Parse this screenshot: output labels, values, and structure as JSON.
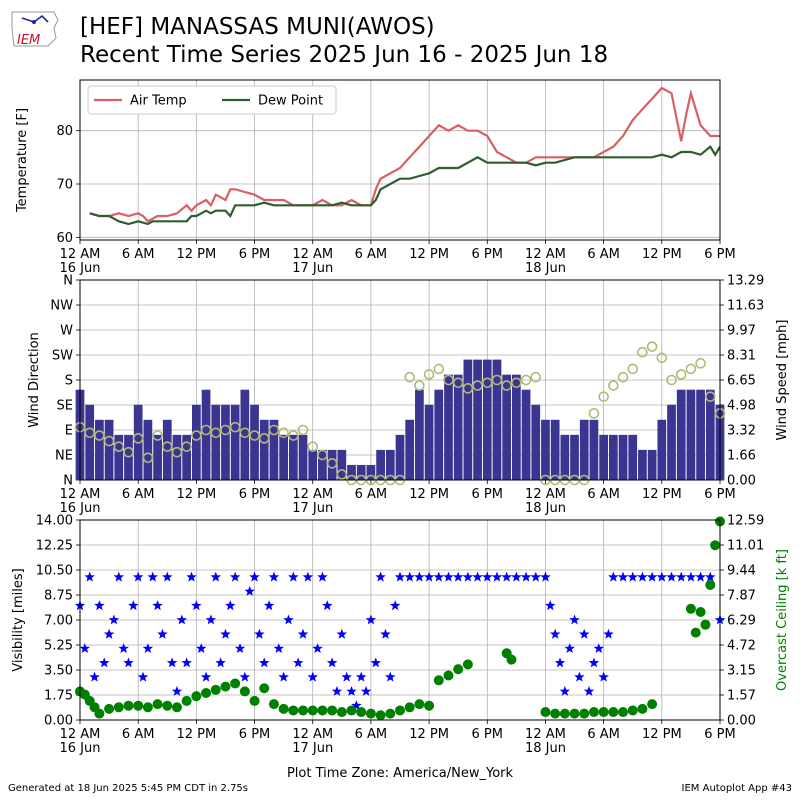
{
  "header": {
    "title": "[HEF] MANASSAS MUNI(AWOS)",
    "subtitle": "Recent Time Series 2025 Jun 16 - 2025 Jun 18",
    "logo_text": "IEM"
  },
  "footer": {
    "generated": "Generated at 18 Jun 2025 5:45 PM CDT in 2.75s",
    "app": "IEM Autoplot App #43",
    "timezone_label": "Plot Time Zone: America/New_York"
  },
  "colors": {
    "air_temp": "#d85f63",
    "dew_point": "#2e5d2f",
    "wind_speed": "#3a3591",
    "wind_dir": "#b3b978",
    "visibility": "#0000ff",
    "ceiling": "#008000"
  },
  "x_axis": {
    "min": 0,
    "max": 66,
    "ticks": [
      {
        "v": 0,
        "l1": "12 AM",
        "l2": "16 Jun"
      },
      {
        "v": 6,
        "l1": "6 AM",
        "l2": ""
      },
      {
        "v": 12,
        "l1": "12 PM",
        "l2": ""
      },
      {
        "v": 18,
        "l1": "6 PM",
        "l2": ""
      },
      {
        "v": 24,
        "l1": "12 AM",
        "l2": "17 Jun"
      },
      {
        "v": 30,
        "l1": "6 AM",
        "l2": ""
      },
      {
        "v": 36,
        "l1": "12 PM",
        "l2": ""
      },
      {
        "v": 42,
        "l1": "6 PM",
        "l2": ""
      },
      {
        "v": 48,
        "l1": "12 AM",
        "l2": "18 Jun"
      },
      {
        "v": 54,
        "l1": "6 AM",
        "l2": ""
      },
      {
        "v": 60,
        "l1": "12 PM",
        "l2": ""
      },
      {
        "v": 66,
        "l1": "6 PM",
        "l2": ""
      }
    ]
  },
  "chart_data": [
    {
      "type": "line",
      "ylabel": "Temperature [F]",
      "ylim": [
        59.5,
        89.5
      ],
      "yticks": [
        "60",
        "70",
        "80"
      ],
      "legend": "top-left",
      "grid": true,
      "series": [
        {
          "name": "Air Temp",
          "color": "#d85f63",
          "x": [
            1,
            2,
            3,
            4,
            5,
            6,
            6.5,
            7,
            8,
            8.5,
            9,
            10,
            11,
            11.5,
            12,
            13,
            13.5,
            14,
            15,
            15.5,
            16,
            17,
            18,
            19,
            20,
            21,
            22,
            23,
            24,
            25,
            26,
            27,
            28,
            29,
            30,
            30.5,
            31,
            32,
            33,
            34,
            35,
            36,
            37,
            38,
            39,
            40,
            41,
            42,
            43,
            44,
            45,
            46,
            47,
            48,
            49,
            50,
            51,
            52,
            53,
            54,
            55,
            56,
            57,
            58,
            59,
            60,
            61,
            62,
            62.5,
            63,
            64,
            65,
            66
          ],
          "y": [
            64.5,
            64,
            64,
            64.5,
            64,
            64.5,
            64,
            63,
            64,
            64,
            64,
            64.5,
            66,
            65,
            66,
            67,
            66,
            68,
            67,
            69,
            69,
            68.5,
            68,
            67,
            67,
            67,
            66,
            66,
            66,
            67,
            66,
            66,
            67,
            66,
            66,
            69,
            71,
            72,
            73,
            75,
            77,
            79,
            81,
            80,
            81,
            80,
            80,
            79,
            76,
            75,
            74,
            74,
            75,
            75,
            75,
            75,
            75,
            75,
            75,
            76,
            77,
            79,
            82,
            84,
            86,
            88,
            87,
            78,
            83,
            87,
            81,
            79,
            79
          ]
        },
        {
          "name": "Dew Point",
          "color": "#2e5d2f",
          "x": [
            1,
            2,
            3,
            4,
            5,
            6,
            7,
            7.5,
            8,
            9,
            10,
            11,
            11.5,
            12,
            13,
            13.5,
            14,
            15,
            15.5,
            16,
            17,
            18,
            19,
            20,
            21,
            22,
            23,
            24,
            25,
            26,
            27,
            28,
            29,
            30,
            30.5,
            31,
            32,
            33,
            34,
            35,
            36,
            37,
            38,
            39,
            40,
            41,
            42,
            43,
            44,
            45,
            46,
            47,
            48,
            49,
            50,
            51,
            52,
            53,
            54,
            55,
            56,
            57,
            58,
            59,
            60,
            61,
            62,
            63,
            64,
            65,
            65.5,
            66
          ],
          "y": [
            64.5,
            64,
            64,
            63,
            62.5,
            63,
            62.5,
            63,
            63,
            63,
            63,
            63,
            64,
            64,
            65,
            64.5,
            65,
            65,
            64,
            66,
            66,
            66,
            66.5,
            66,
            66,
            66,
            66,
            66,
            66,
            66,
            66.5,
            66,
            66,
            66,
            67,
            69,
            70,
            71,
            71,
            71.5,
            72,
            73,
            73,
            73,
            74,
            75,
            74,
            74,
            74,
            74,
            74,
            73.5,
            74,
            74,
            74.5,
            75,
            75,
            75,
            75,
            75,
            75,
            75,
            75,
            75,
            75.5,
            75,
            76,
            76,
            75.5,
            77,
            75.5,
            77
          ]
        }
      ]
    },
    {
      "type": "bar",
      "ylabel": "Wind Direction",
      "ylabel_right": "Wind Speed [mph]",
      "dir_ticks": [
        "N",
        "NE",
        "E",
        "SE",
        "S",
        "SW",
        "W",
        "NW",
        "N"
      ],
      "speed_ticks": [
        "0.00",
        "1.66",
        "3.32",
        "4.98",
        "6.65",
        "8.31",
        "9.97",
        "11.63",
        "13.29"
      ],
      "speed_ylim": [
        0,
        13.29
      ],
      "dir_ylim": [
        0,
        360
      ],
      "grid": true,
      "series": [
        {
          "name": "",
          "color": "#3a3591",
          "kind": "bar",
          "x": [
            0,
            1,
            2,
            3,
            4,
            5,
            6,
            7,
            8,
            9,
            10,
            11,
            12,
            13,
            14,
            15,
            16,
            17,
            18,
            19,
            20,
            21,
            22,
            23,
            24,
            25,
            26,
            27,
            28,
            29,
            30,
            31,
            32,
            33,
            34,
            35,
            36,
            37,
            38,
            39,
            40,
            41,
            42,
            43,
            44,
            45,
            46,
            47,
            48,
            49,
            50,
            51,
            52,
            53,
            54,
            55,
            56,
            57,
            58,
            59,
            60,
            61,
            62,
            63,
            64,
            65,
            66
          ],
          "y": [
            6,
            5,
            4,
            4,
            3,
            3,
            5,
            4,
            3,
            4,
            3,
            3,
            5,
            6,
            5,
            5,
            5,
            6,
            5,
            4,
            4,
            3,
            3,
            3,
            2,
            2,
            2,
            2,
            1,
            1,
            1,
            2,
            2,
            3,
            4,
            6,
            5,
            6,
            7,
            7,
            8,
            8,
            8,
            8,
            7,
            7,
            6,
            5,
            4,
            4,
            3,
            3,
            4,
            4,
            3,
            3,
            3,
            3,
            2,
            2,
            4,
            5,
            6,
            6,
            6,
            6,
            5
          ]
        },
        {
          "name": "",
          "color": "#b3b978",
          "kind": "point",
          "x": [
            0,
            1,
            2,
            3,
            4,
            5,
            6,
            7,
            8,
            9,
            10,
            11,
            12,
            13,
            14,
            15,
            16,
            17,
            18,
            19,
            20,
            21,
            22,
            23,
            24,
            25,
            26,
            27,
            28,
            29,
            30,
            31,
            32,
            33,
            34,
            35,
            36,
            37,
            38,
            39,
            40,
            41,
            42,
            43,
            44,
            45,
            46,
            47,
            48,
            49,
            50,
            51,
            52,
            53,
            54,
            55,
            56,
            57,
            58,
            59,
            60,
            61,
            62,
            63,
            64,
            65,
            66
          ],
          "y": [
            95,
            85,
            80,
            70,
            60,
            50,
            75,
            40,
            80,
            60,
            50,
            60,
            80,
            90,
            85,
            90,
            95,
            85,
            80,
            75,
            90,
            85,
            80,
            90,
            60,
            45,
            30,
            10,
            0,
            0,
            0,
            0,
            0,
            0,
            185,
            170,
            190,
            200,
            180,
            175,
            165,
            170,
            175,
            180,
            170,
            175,
            180,
            185,
            0,
            0,
            0,
            0,
            0,
            120,
            150,
            170,
            185,
            200,
            230,
            240,
            220,
            180,
            190,
            200,
            210,
            150,
            120
          ]
        }
      ]
    },
    {
      "type": "scatter",
      "ylabel": "Visibility [miles]",
      "ylabel_right": "Overcast Ceiling [k ft]",
      "vis_ticks": [
        "0.00",
        "1.75",
        "3.50",
        "5.25",
        "7.00",
        "8.75",
        "10.50",
        "12.25",
        "14.00"
      ],
      "vis_ylim": [
        0,
        14
      ],
      "ceil_ticks": [
        "0.00",
        "1.57",
        "3.15",
        "4.72",
        "6.29",
        "7.87",
        "9.44",
        "11.01",
        "12.59"
      ],
      "ceil_ylim": [
        0,
        12.59
      ],
      "grid": true,
      "series": [
        {
          "name": "",
          "color": "#0000ff",
          "marker": "star",
          "x": [
            0,
            0.5,
            1,
            1.5,
            2,
            2.5,
            3,
            3.5,
            4,
            4.5,
            5,
            5.5,
            6,
            6.5,
            7,
            7.5,
            8,
            8.5,
            9,
            9.5,
            10,
            10.5,
            11,
            11.5,
            12,
            12.5,
            13,
            13.5,
            14,
            14.5,
            15,
            15.5,
            16,
            16.5,
            17,
            17.5,
            18,
            18.5,
            19,
            19.5,
            20,
            20.5,
            21,
            21.5,
            22,
            22.5,
            23,
            23.5,
            24,
            24.5,
            25,
            25.5,
            26,
            26.5,
            27,
            27.5,
            28,
            28.5,
            29,
            29.5,
            30,
            30.5,
            31,
            31.5,
            32,
            32.5,
            33,
            34,
            35,
            36,
            37,
            38,
            39,
            40,
            41,
            42,
            43,
            44,
            45,
            46,
            47,
            48,
            48.5,
            49,
            49.5,
            50,
            50.5,
            51,
            51.5,
            52,
            52.5,
            53,
            53.5,
            54,
            54.5,
            55,
            56,
            57,
            58,
            59,
            60,
            61,
            62,
            63,
            64,
            65,
            66
          ],
          "y": [
            8,
            5,
            10,
            3,
            8,
            4,
            6,
            7,
            10,
            5,
            4,
            8,
            10,
            3,
            5,
            10,
            8,
            6,
            10,
            4,
            2,
            7,
            4,
            10,
            8,
            5,
            3,
            7,
            10,
            4,
            6,
            8,
            10,
            5,
            3,
            9,
            10,
            6,
            4,
            8,
            10,
            5,
            3,
            7,
            10,
            4,
            6,
            10,
            3,
            5,
            10,
            8,
            4,
            2,
            6,
            3,
            2,
            1,
            3,
            2,
            7,
            4,
            10,
            6,
            3,
            8,
            10,
            10,
            10,
            10,
            10,
            10,
            10,
            10,
            10,
            10,
            10,
            10,
            10,
            10,
            10,
            10,
            8,
            6,
            4,
            2,
            5,
            7,
            3,
            6,
            2,
            4,
            5,
            3,
            6,
            10,
            10,
            10,
            10,
            10,
            10,
            10,
            10,
            10,
            10,
            10,
            7
          ]
        },
        {
          "name": "",
          "color": "#008000",
          "marker": "circle",
          "x": [
            0,
            0.5,
            1,
            1.5,
            2,
            3,
            4,
            5,
            6,
            7,
            8,
            9,
            10,
            11,
            12,
            13,
            14,
            15,
            16,
            17,
            18,
            19,
            20,
            21,
            22,
            23,
            24,
            25,
            26,
            27,
            28,
            29,
            30,
            31,
            32,
            33,
            34,
            35,
            36,
            37,
            38,
            39,
            40,
            44,
            44.5,
            48,
            49,
            50,
            51,
            52,
            53,
            54,
            55,
            56,
            57,
            58,
            59,
            63,
            63.5,
            64,
            64.5,
            65,
            65.5,
            66
          ],
          "y": [
            1.8,
            1.6,
            1.2,
            0.8,
            0.4,
            0.7,
            0.8,
            0.9,
            0.9,
            0.8,
            1.0,
            0.9,
            0.8,
            1.2,
            1.5,
            1.7,
            1.9,
            2.1,
            2.3,
            1.8,
            1.2,
            2.0,
            1.0,
            0.7,
            0.6,
            0.6,
            0.6,
            0.6,
            0.6,
            0.5,
            0.6,
            0.5,
            0.4,
            0.3,
            0.4,
            0.6,
            0.8,
            1.0,
            0.9,
            2.5,
            2.8,
            3.2,
            3.5,
            4.2,
            3.8,
            0.5,
            0.4,
            0.4,
            0.4,
            0.4,
            0.5,
            0.5,
            0.5,
            0.5,
            0.6,
            0.7,
            1.0,
            7.0,
            5.5,
            6.8,
            6.0,
            8.5,
            11.0,
            12.5
          ]
        }
      ]
    }
  ]
}
